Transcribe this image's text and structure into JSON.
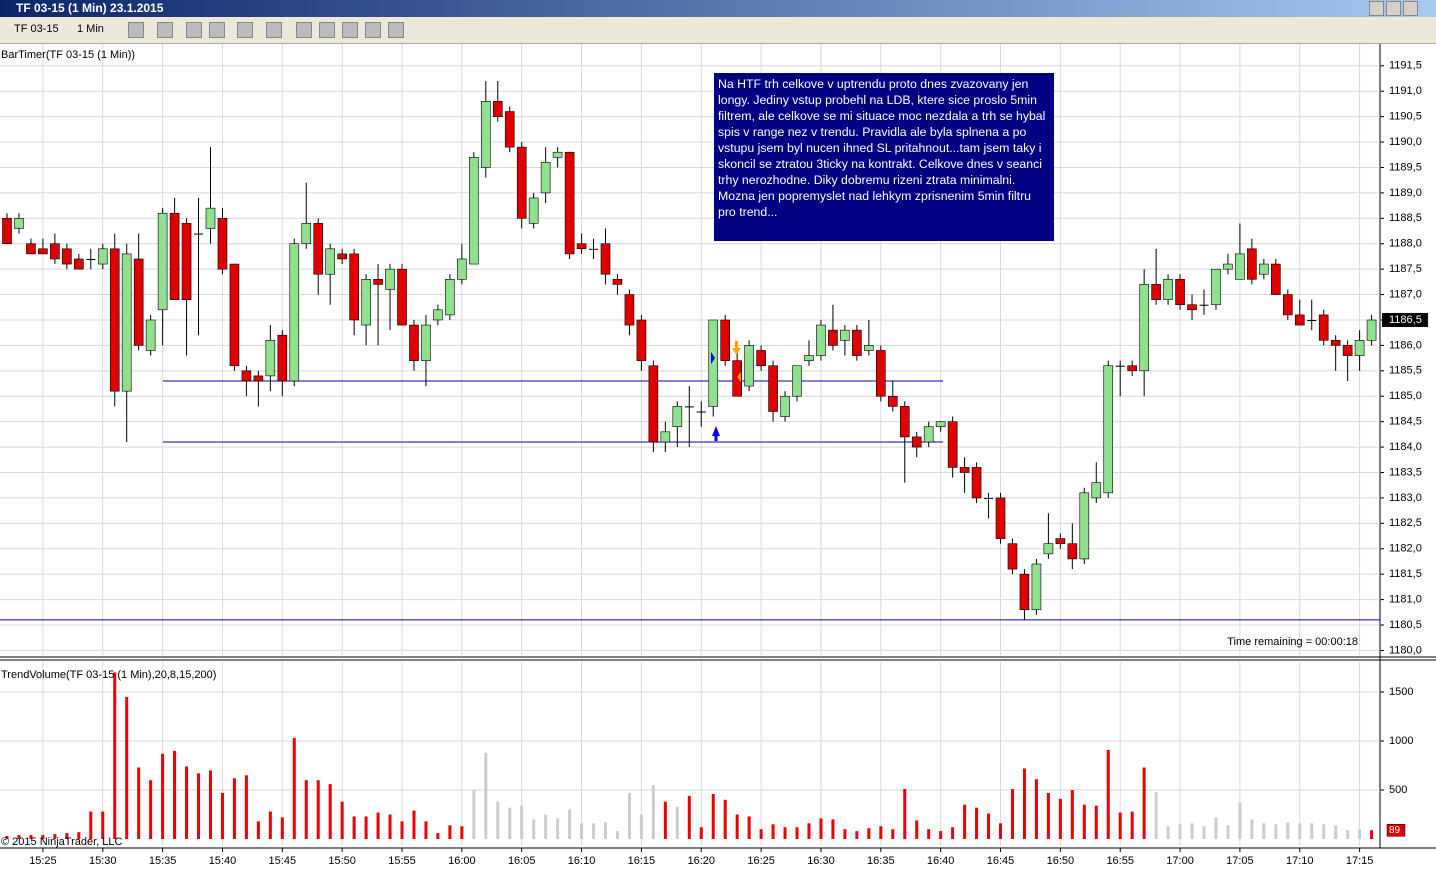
{
  "window": {
    "title": "TF 03-15 (1 Min)  23.1.2015",
    "instrument": "TF 03-15",
    "interval": "1 Min"
  },
  "chart_data": [
    {
      "type": "candlestick",
      "title": "BarTimer(TF 03-15 (1 Min))",
      "categories": [
        null,
        null,
        null,
        "15:25",
        null,
        null,
        null,
        null,
        "15:30",
        null,
        null,
        null,
        null,
        "15:35",
        null,
        null,
        null,
        null,
        "15:40",
        null,
        null,
        null,
        null,
        "15:45",
        null,
        null,
        null,
        null,
        "15:50",
        null,
        null,
        null,
        null,
        "15:55",
        null,
        null,
        null,
        null,
        "16:00",
        null,
        null,
        null,
        null,
        "16:05",
        null,
        null,
        null,
        null,
        "16:10",
        null,
        null,
        null,
        null,
        "16:15",
        null,
        null,
        null,
        null,
        "16:20",
        null,
        null,
        null,
        null,
        "16:25",
        null,
        null,
        null,
        null,
        "16:30",
        null,
        null,
        null,
        null,
        "16:35",
        null,
        null,
        null,
        null,
        "16:40",
        null,
        null,
        null,
        null,
        "16:45",
        null,
        null,
        null,
        null,
        "16:50",
        null,
        null,
        null,
        null,
        "16:55",
        null,
        null,
        null,
        null,
        "17:00",
        null,
        null,
        null,
        null,
        "17:05",
        null,
        null,
        null,
        null,
        "17:10",
        null,
        null,
        null,
        null,
        "17:15",
        null
      ],
      "open": [
        1188.5,
        1188.3,
        1188.0,
        1187.9,
        1188.0,
        1187.9,
        1187.7,
        1187.7,
        1187.6,
        1187.9,
        1185.1,
        1187.7,
        1185.9,
        1186.7,
        1188.6,
        1188.4,
        1188.2,
        1188.3,
        1188.5,
        1187.6,
        1185.5,
        1185.4,
        1185.4,
        1186.2,
        1185.3,
        1188.0,
        1188.4,
        1187.4,
        1187.8,
        1187.8,
        1186.4,
        1187.3,
        1187.1,
        1187.5,
        1186.4,
        1185.7,
        1186.5,
        1186.6,
        1187.3,
        1187.6,
        1189.5,
        1190.8,
        1190.6,
        1189.9,
        1188.4,
        1189.0,
        1189.7,
        1189.8,
        1188.0,
        1187.9,
        1188.0,
        1187.3,
        1187.0,
        1186.5,
        1185.6,
        1184.1,
        1184.4,
        1184.8,
        1184.7,
        1184.8,
        1186.5,
        1185.7,
        1185.2,
        1185.9,
        1185.6,
        1184.6,
        1185.0,
        1185.7,
        1185.8,
        1186.3,
        1186.1,
        1186.3,
        1185.9,
        1185.9,
        1185.0,
        1184.8,
        1184.2,
        1184.1,
        1184.4,
        1184.5,
        1183.6,
        1183.6,
        1183.0,
        1183.0,
        1182.1,
        1181.5,
        1180.8,
        1181.9,
        1182.2,
        1182.1,
        1181.8,
        1183.0,
        1183.1,
        1185.6,
        1185.6,
        1185.5,
        1187.2,
        1186.9,
        1187.3,
        1186.8,
        1186.8,
        1186.8,
        1187.5,
        1187.3,
        1187.9,
        1187.4,
        1187.6,
        1187.0,
        1186.6,
        1186.5,
        1186.6,
        1186.1,
        1186.0,
        1185.8,
        1186.1
      ],
      "high": [
        1188.6,
        1188.6,
        1188.1,
        1188.1,
        1188.2,
        1188.0,
        1187.8,
        1187.9,
        1188.0,
        1188.2,
        1188.0,
        1188.2,
        1186.6,
        1188.7,
        1188.9,
        1188.5,
        1188.9,
        1189.9,
        1188.7,
        1187.6,
        1185.6,
        1185.5,
        1186.4,
        1186.3,
        1188.1,
        1189.2,
        1188.5,
        1188.0,
        1187.9,
        1187.9,
        1187.4,
        1187.6,
        1187.6,
        1187.6,
        1186.5,
        1186.6,
        1186.8,
        1187.4,
        1188.0,
        1189.8,
        1191.2,
        1191.2,
        1190.7,
        1190.0,
        1189.0,
        1189.9,
        1189.9,
        1189.8,
        1188.2,
        1188.1,
        1188.3,
        1187.4,
        1187.1,
        1186.6,
        1185.7,
        1184.5,
        1184.9,
        1185.2,
        1184.9,
        1186.5,
        1186.6,
        1186.0,
        1186.1,
        1186.0,
        1185.7,
        1185.1,
        1185.6,
        1186.1,
        1186.5,
        1186.8,
        1186.4,
        1186.4,
        1186.5,
        1186.0,
        1185.3,
        1184.9,
        1184.3,
        1184.5,
        1184.5,
        1184.6,
        1183.8,
        1183.7,
        1183.1,
        1183.1,
        1182.2,
        1181.6,
        1181.8,
        1182.7,
        1182.3,
        1182.5,
        1183.2,
        1183.7,
        1185.7,
        1185.7,
        1185.7,
        1187.5,
        1187.9,
        1187.4,
        1187.4,
        1187.0,
        1187.1,
        1187.5,
        1187.8,
        1188.4,
        1188.1,
        1187.7,
        1187.7,
        1187.1,
        1186.9,
        1186.9,
        1186.7,
        1186.2,
        1186.1,
        1186.3,
        1186.6
      ],
      "low": [
        1188.0,
        1188.2,
        1187.8,
        1187.8,
        1187.6,
        1187.5,
        1187.5,
        1187.5,
        1187.5,
        1184.8,
        1184.1,
        1185.9,
        1185.8,
        1186.0,
        1186.9,
        1185.8,
        1186.2,
        1188.0,
        1187.4,
        1185.5,
        1185.0,
        1184.8,
        1185.1,
        1185.0,
        1185.2,
        1187.9,
        1187.0,
        1186.8,
        1187.6,
        1186.2,
        1186.0,
        1186.0,
        1186.3,
        1186.4,
        1185.5,
        1185.2,
        1186.4,
        1186.5,
        1187.2,
        1187.6,
        1189.3,
        1190.4,
        1189.8,
        1188.3,
        1188.3,
        1188.8,
        1189.5,
        1187.7,
        1187.8,
        1187.7,
        1187.2,
        1187.0,
        1186.2,
        1185.5,
        1183.9,
        1183.9,
        1184.0,
        1184.0,
        1184.4,
        1184.6,
        1185.6,
        1185.0,
        1185.1,
        1185.5,
        1184.5,
        1184.5,
        1184.9,
        1185.6,
        1185.7,
        1185.9,
        1185.8,
        1185.7,
        1185.8,
        1184.9,
        1184.7,
        1183.3,
        1183.8,
        1184.0,
        1184.3,
        1183.4,
        1183.1,
        1182.9,
        1182.6,
        1182.1,
        1181.5,
        1180.6,
        1180.7,
        1181.8,
        1182.0,
        1181.6,
        1181.7,
        1182.9,
        1183.0,
        1185.0,
        1185.4,
        1185.0,
        1186.8,
        1186.8,
        1186.7,
        1186.5,
        1186.6,
        1186.7,
        1187.4,
        1187.3,
        1187.2,
        1187.3,
        1187.0,
        1186.5,
        1186.4,
        1186.3,
        1186.0,
        1185.5,
        1185.3,
        1185.5,
        1186.0
      ],
      "close": [
        1188.0,
        1188.5,
        1187.8,
        1187.8,
        1187.7,
        1187.6,
        1187.5,
        1187.7,
        1187.9,
        1185.1,
        1187.8,
        1186.0,
        1186.5,
        1188.6,
        1186.9,
        1186.9,
        1188.2,
        1188.7,
        1187.5,
        1185.6,
        1185.3,
        1185.3,
        1186.1,
        1185.3,
        1188.0,
        1188.4,
        1187.4,
        1187.9,
        1187.7,
        1186.5,
        1187.3,
        1187.2,
        1187.5,
        1186.4,
        1185.7,
        1186.4,
        1186.7,
        1187.3,
        1187.7,
        1189.7,
        1190.8,
        1190.5,
        1189.9,
        1188.5,
        1188.9,
        1189.6,
        1189.8,
        1187.8,
        1187.9,
        1187.9,
        1187.4,
        1187.2,
        1186.4,
        1185.7,
        1184.1,
        1184.3,
        1184.8,
        1184.8,
        1184.7,
        1186.5,
        1185.7,
        1185.0,
        1186.0,
        1185.6,
        1184.7,
        1185.0,
        1185.6,
        1185.8,
        1186.4,
        1186.0,
        1186.3,
        1185.8,
        1186.0,
        1185.0,
        1184.8,
        1184.2,
        1184.0,
        1184.4,
        1184.5,
        1183.6,
        1183.5,
        1183.0,
        1183.0,
        1182.2,
        1181.6,
        1180.8,
        1181.7,
        1182.1,
        1182.1,
        1181.8,
        1183.1,
        1183.3,
        1185.6,
        1185.6,
        1185.5,
        1187.2,
        1186.9,
        1187.3,
        1186.8,
        1186.7,
        1186.8,
        1187.5,
        1187.6,
        1187.8,
        1187.3,
        1187.6,
        1187.0,
        1186.6,
        1186.4,
        1186.5,
        1186.1,
        1186.0,
        1185.8,
        1186.1,
        1186.5
      ],
      "up_color": "#90e090",
      "down_color": "#e00000",
      "ylim": [
        1179.91,
        1191.85
      ],
      "yticks": [
        {
          "value": 1180,
          "label": "1180,0"
        },
        {
          "value": 1180.5,
          "label": "1180,5"
        },
        {
          "value": 1181,
          "label": "1181,0"
        },
        {
          "value": 1181.5,
          "label": "1181,5"
        },
        {
          "value": 1182,
          "label": "1182,0"
        },
        {
          "value": 1182.5,
          "label": "1182,5"
        },
        {
          "value": 1183,
          "label": "1183,0"
        },
        {
          "value": 1183.5,
          "label": "1183,5"
        },
        {
          "value": 1184,
          "label": "1184,0"
        },
        {
          "value": 1184.5,
          "label": "1184,5"
        },
        {
          "value": 1185,
          "label": "1185,0"
        },
        {
          "value": 1185.5,
          "label": "1185,5"
        },
        {
          "value": 1186,
          "label": "1186,0"
        },
        {
          "value": 1186.5,
          "label": "1186,5"
        },
        {
          "value": 1187,
          "label": "1187,0"
        },
        {
          "value": 1187.5,
          "label": "1187,5"
        },
        {
          "value": 1188,
          "label": "1188,0"
        },
        {
          "value": 1188.5,
          "label": "1188,5"
        },
        {
          "value": 1189,
          "label": "1189,0"
        },
        {
          "value": 1189.5,
          "label": "1189,5"
        },
        {
          "value": 1190,
          "label": "1190,0"
        },
        {
          "value": 1190.5,
          "label": "1190,5"
        },
        {
          "value": 1191,
          "label": "1191,0"
        },
        {
          "value": 1191.5,
          "label": "1191,5"
        }
      ],
      "grid": true,
      "hlines": [
        {
          "value": 1185.3,
          "color": "#0000c0"
        },
        {
          "value": 1184.1,
          "color": "#0000c0"
        },
        {
          "value": 1180.6,
          "color": "#0000c0"
        }
      ],
      "last_price": {
        "value": 1186.5,
        "label": "1186,5"
      },
      "time_remaining": "Time remaining = 00:00:18",
      "annotation": "Na HTF trh celkove v uptrendu proto dnes zvazovany jen longy. Jediny vstup probehl na LDB, ktere sice proslo 5min filtrem, ale celkove se mi situace moc nezdala a trh se hybal spis v range nez v trendu. Pravidla ale byla splnena a po vstupu jsem byl nucen ihned SL pritahnout...tam jsem taky i skoncil se ztratou 3ticky na kontrakt. Celkove dnes v seanci trhy nerozhodne. Diky dobremu rizeni ztrata minimalni. Mozna jen popremyslet nad lehkym zprisnenim 5min filtru pro trend..."
    },
    {
      "type": "bar",
      "title": "TrendVolume(TF 03-15 (1 Min),20,8,15,200)",
      "values": [
        30,
        40,
        40,
        40,
        50,
        60,
        70,
        280,
        280,
        1700,
        1450,
        730,
        600,
        870,
        900,
        740,
        670,
        700,
        470,
        620,
        650,
        180,
        280,
        220,
        1030,
        600,
        600,
        560,
        380,
        230,
        230,
        270,
        250,
        180,
        290,
        180,
        60,
        140,
        130,
        500,
        880,
        380,
        320,
        340,
        200,
        250,
        210,
        300,
        160,
        160,
        170,
        80,
        470,
        250,
        550,
        380,
        330,
        440,
        120,
        460,
        400,
        250,
        230,
        100,
        150,
        120,
        120,
        160,
        210,
        200,
        100,
        80,
        110,
        130,
        100,
        510,
        190,
        100,
        80,
        120,
        350,
        320,
        260,
        160,
        510,
        720,
        610,
        470,
        410,
        500,
        350,
        340,
        910,
        270,
        280,
        730,
        480,
        130,
        150,
        160,
        130,
        220,
        140,
        370,
        200,
        160,
        150,
        170,
        160,
        160,
        150,
        140,
        90,
        100,
        89
      ],
      "colors": [
        "#e00",
        "#e00",
        "#e00",
        "#e00",
        "#e00",
        "#e00",
        "#e00",
        "#e00",
        "#e00",
        "#e00",
        "#e00",
        "#e00",
        "#e00",
        "#e00",
        "#e00",
        "#e00",
        "#e00",
        "#e00",
        "#e00",
        "#e00",
        "#e00",
        "#e00",
        "#e00",
        "#e00",
        "#e00",
        "#e00",
        "#e00",
        "#e00",
        "#e00",
        "#e00",
        "#e00",
        "#e00",
        "#e00",
        "#e00",
        "#e00",
        "#e00",
        "#e00",
        "#e00",
        "#e00",
        "#ccc",
        "#ccc",
        "#ccc",
        "#ccc",
        "#ccc",
        "#ccc",
        "#ccc",
        "#ccc",
        "#ccc",
        "#ccc",
        "#ccc",
        "#ccc",
        "#ccc",
        "#ccc",
        "#ccc",
        "#ccc",
        "#e00",
        "#ccc",
        "#e00",
        "#e00",
        "#e00",
        "#e00",
        "#e00",
        "#e00",
        "#e00",
        "#e00",
        "#e00",
        "#e00",
        "#e00",
        "#e00",
        "#e00",
        "#e00",
        "#e00",
        "#e00",
        "#e00",
        "#e00",
        "#e00",
        "#e00",
        "#e00",
        "#e00",
        "#e00",
        "#e00",
        "#e00",
        "#e00",
        "#e00",
        "#e00",
        "#e00",
        "#e00",
        "#e00",
        "#e00",
        "#e00",
        "#e00",
        "#e00",
        "#e00",
        "#e00",
        "#e00",
        "#e00",
        "#ccc",
        "#ccc",
        "#ccc",
        "#ccc",
        "#ccc",
        "#ccc",
        "#ccc",
        "#ccc",
        "#ccc",
        "#ccc",
        "#ccc",
        "#ccc",
        "#ccc",
        "#ccc",
        "#ccc",
        "#ccc",
        "#ccc",
        "#ccc",
        "#e00"
      ],
      "ylim": [
        0,
        1776
      ],
      "yticks": [
        500,
        1000,
        1500
      ],
      "grid": true,
      "copyright": "© 2015 NinjaTrader, LLC"
    }
  ]
}
